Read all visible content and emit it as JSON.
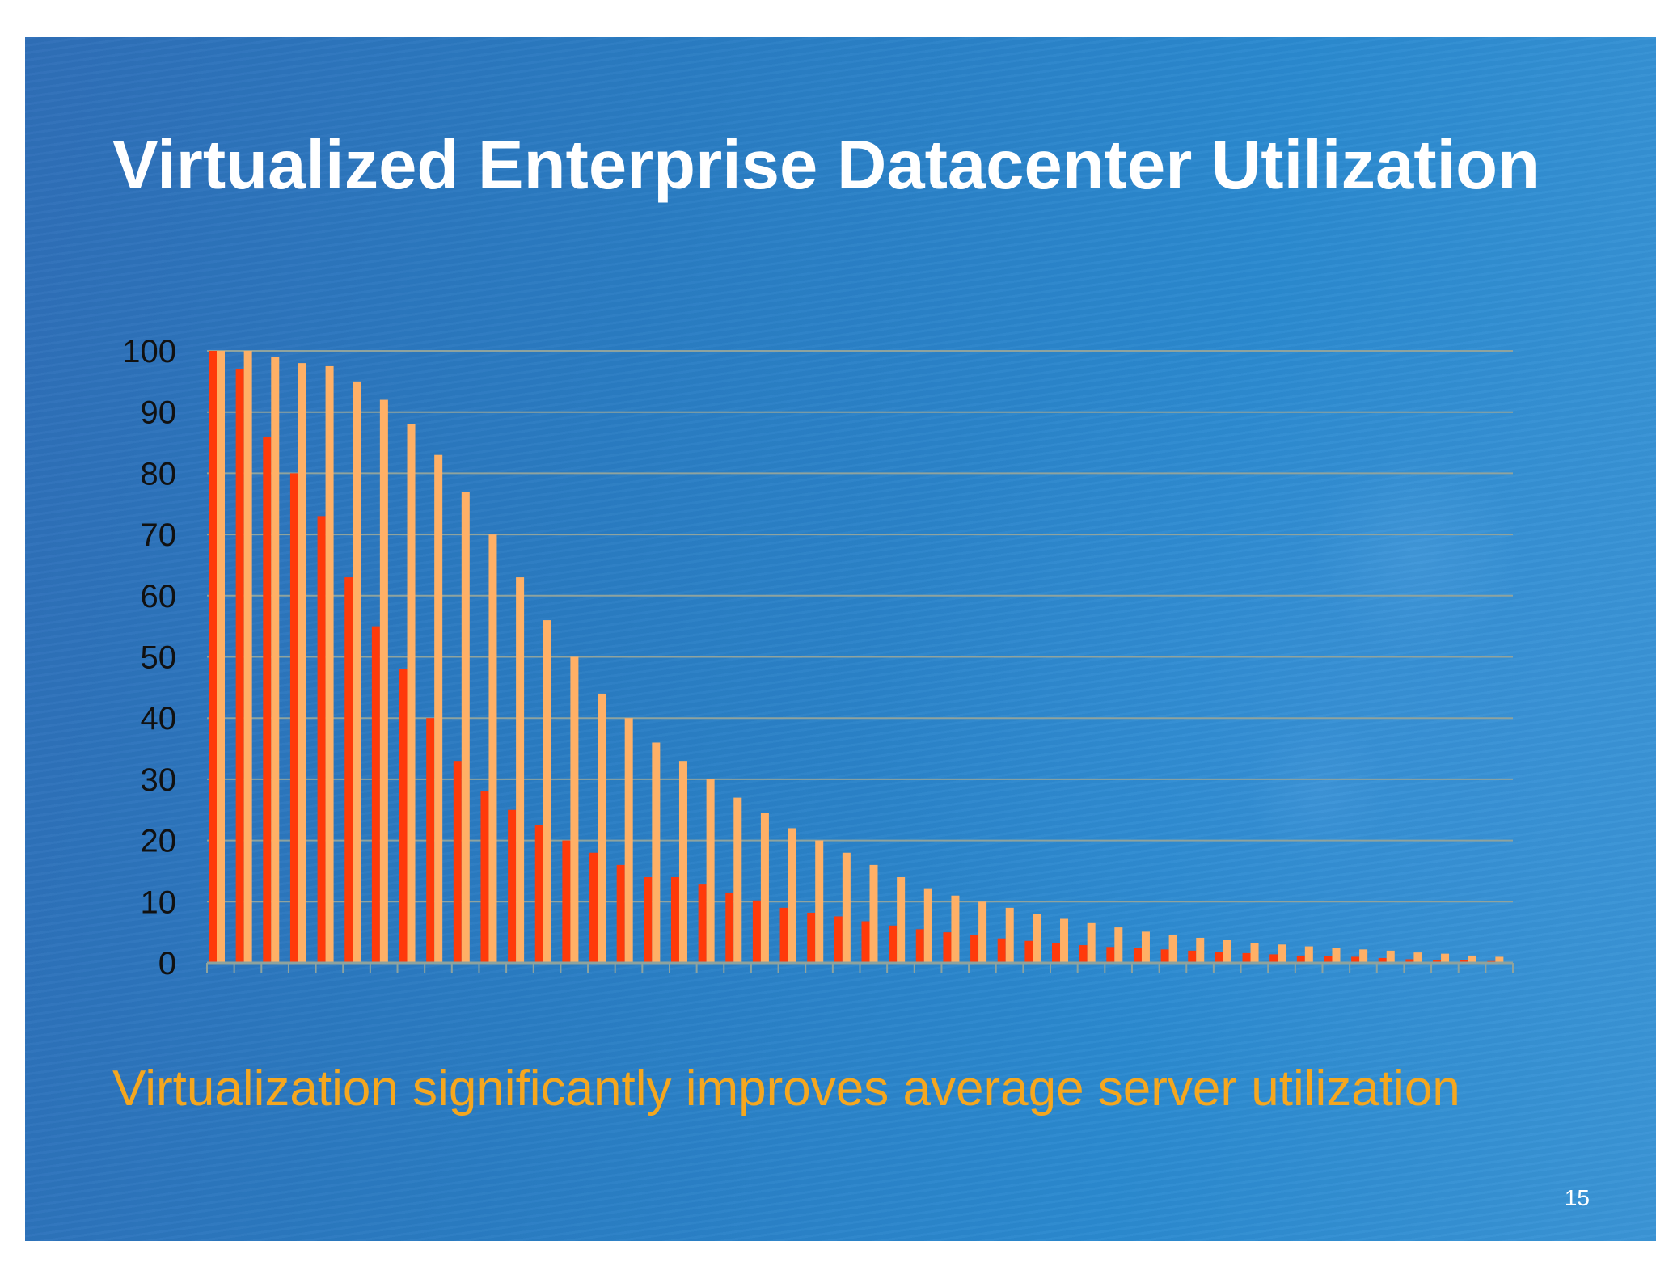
{
  "slide": {
    "title": "Virtualized Enterprise Datacenter Utilization",
    "subtitle": "Virtualization significantly improves average server utilization",
    "page_number": "15",
    "colors": {
      "background": "#2a7cc3",
      "title": "#ffffff",
      "subtitle": "#f5a71f"
    }
  },
  "chart_data": {
    "type": "bar",
    "title": "",
    "xlabel": "",
    "ylabel": "",
    "ylim": [
      0,
      100
    ],
    "y_ticks": [
      "0",
      "10",
      "20",
      "30",
      "40",
      "50",
      "60",
      "70",
      "80",
      "90",
      "100"
    ],
    "grid": true,
    "legend": "none",
    "series": [
      {
        "color": "#ff3a0a",
        "values": [
          100,
          97,
          86,
          80,
          73,
          63,
          55,
          48,
          40,
          33,
          28,
          25,
          22.5,
          20,
          18,
          16,
          14,
          14,
          12.8,
          11.5,
          10.2,
          9,
          8.2,
          7.6,
          6.8,
          6.1,
          5.5,
          5,
          4.5,
          4,
          3.6,
          3.2,
          2.9,
          2.6,
          2.4,
          2.2,
          2,
          1.8,
          1.6,
          1.4,
          1.2,
          1.1,
          1,
          0.8,
          0.6,
          0.5,
          0.4,
          0.3
        ]
      },
      {
        "color": "#ffb066",
        "values": [
          100,
          100,
          99,
          98,
          97.5,
          95,
          92,
          88,
          83,
          77,
          70,
          63,
          56,
          50,
          44,
          40,
          36,
          33,
          30,
          27,
          24.5,
          22,
          20,
          18,
          16,
          14,
          12.2,
          11,
          10,
          9,
          8,
          7.2,
          6.5,
          5.8,
          5.1,
          4.6,
          4.1,
          3.7,
          3.3,
          3,
          2.7,
          2.4,
          2.2,
          2,
          1.7,
          1.5,
          1.2,
          1
        ]
      }
    ]
  }
}
